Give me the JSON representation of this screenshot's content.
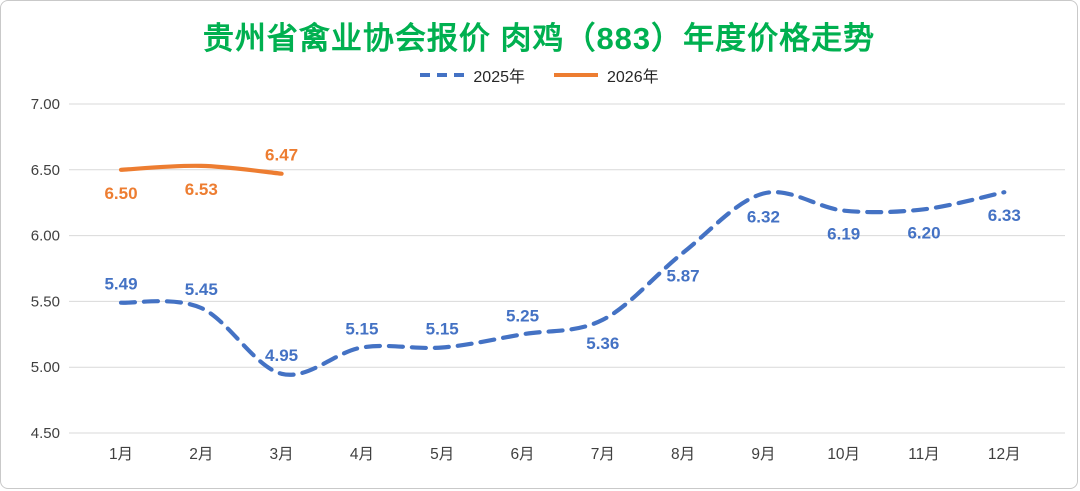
{
  "title": "贵州省禽业协会报价 肉鸡（883）年度价格走势",
  "legend": {
    "items": [
      {
        "label": "2025年"
      },
      {
        "label": "2026年"
      }
    ]
  },
  "chart_data": {
    "type": "line",
    "title": "贵州省禽业协会报价 肉鸡（883）年度价格走势",
    "xlabel": "",
    "ylabel": "",
    "categories": [
      "1月",
      "2月",
      "3月",
      "4月",
      "5月",
      "6月",
      "7月",
      "8月",
      "9月",
      "10月",
      "11月",
      "12月"
    ],
    "series": [
      {
        "name": "2025年",
        "color": "#4472C4",
        "line_style": "dashed",
        "values": [
          5.49,
          5.45,
          4.95,
          5.15,
          5.15,
          5.25,
          5.36,
          5.87,
          6.32,
          6.19,
          6.2,
          6.33
        ],
        "label_positions": [
          "above",
          "above",
          "above",
          "above",
          "above",
          "above",
          "below",
          "below",
          "below",
          "below",
          "below",
          "below"
        ]
      },
      {
        "name": "2026年",
        "color": "#ED7D31",
        "line_style": "solid",
        "values": [
          6.5,
          6.53,
          6.47
        ],
        "label_positions": [
          "below",
          "below",
          "above"
        ]
      }
    ],
    "ylim": [
      4.5,
      7.0
    ],
    "yticks": [
      4.5,
      5.0,
      5.5,
      6.0,
      6.5,
      7.0
    ],
    "ytick_decimals": 2,
    "grid": true,
    "legend_position": "top",
    "smooth": true
  },
  "colors": {
    "title": "#00B050",
    "grid": "#D9D9D9",
    "axis_text": "#404040",
    "background": "#FFFFFF",
    "border": "#C9C9C9"
  }
}
